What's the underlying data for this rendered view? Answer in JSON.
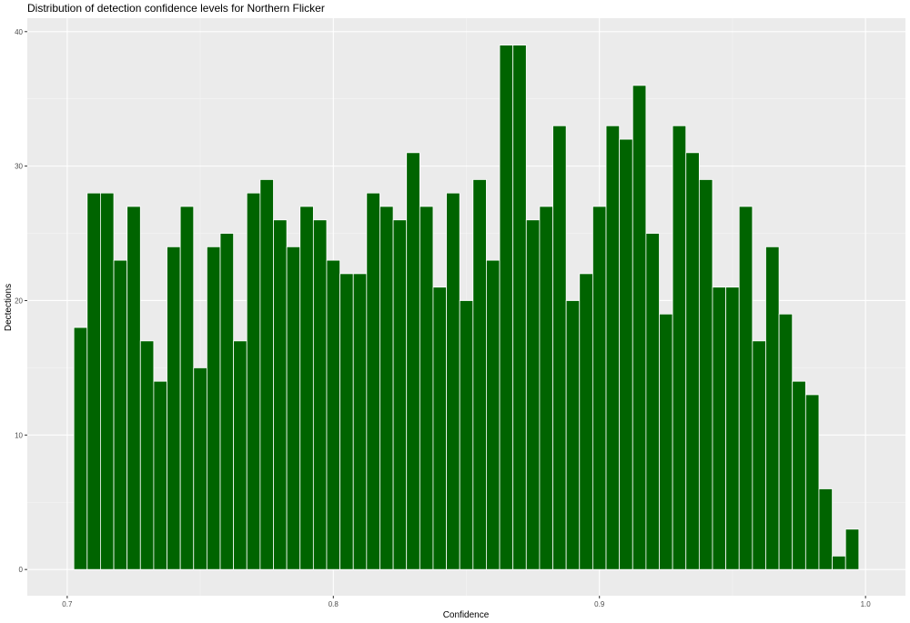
{
  "chart_data": {
    "type": "bar",
    "title": "Distribution of detection confidence levels for Northern Flicker",
    "xlabel": "Confidence",
    "ylabel": "Dectections",
    "binwidth": 0.005,
    "bin_centers": [
      0.705,
      0.71,
      0.715,
      0.72,
      0.725,
      0.73,
      0.735,
      0.74,
      0.745,
      0.75,
      0.755,
      0.76,
      0.765,
      0.77,
      0.775,
      0.78,
      0.785,
      0.79,
      0.795,
      0.8,
      0.805,
      0.81,
      0.815,
      0.82,
      0.825,
      0.83,
      0.835,
      0.84,
      0.845,
      0.85,
      0.855,
      0.86,
      0.865,
      0.87,
      0.875,
      0.88,
      0.885,
      0.89,
      0.895,
      0.9,
      0.905,
      0.91,
      0.915,
      0.92,
      0.925,
      0.93,
      0.935,
      0.94,
      0.945,
      0.95,
      0.955,
      0.96,
      0.965,
      0.97,
      0.975,
      0.98,
      0.985,
      0.99,
      0.995
    ],
    "values": [
      18,
      28,
      28,
      23,
      27,
      17,
      14,
      24,
      27,
      15,
      24,
      25,
      17,
      28,
      29,
      26,
      24,
      27,
      26,
      23,
      22,
      22,
      28,
      27,
      26,
      31,
      27,
      21,
      28,
      20,
      29,
      23,
      39,
      39,
      26,
      27,
      33,
      20,
      22,
      27,
      33,
      32,
      36,
      25,
      19,
      33,
      31,
      29,
      21,
      21,
      27,
      17,
      24,
      19,
      14,
      13,
      6,
      1,
      3
    ],
    "xlim": [
      0.685,
      1.015
    ],
    "ylim": [
      -1.95,
      41
    ],
    "xticks": [
      "0.7",
      "0.8",
      "0.9",
      "1.0"
    ],
    "yticks": [
      "0",
      "10",
      "20",
      "30",
      "40"
    ],
    "grid": true,
    "colors": {
      "bar_fill": "#006400",
      "bar_outline": "#ffffff",
      "panel": "#ebebeb"
    }
  }
}
